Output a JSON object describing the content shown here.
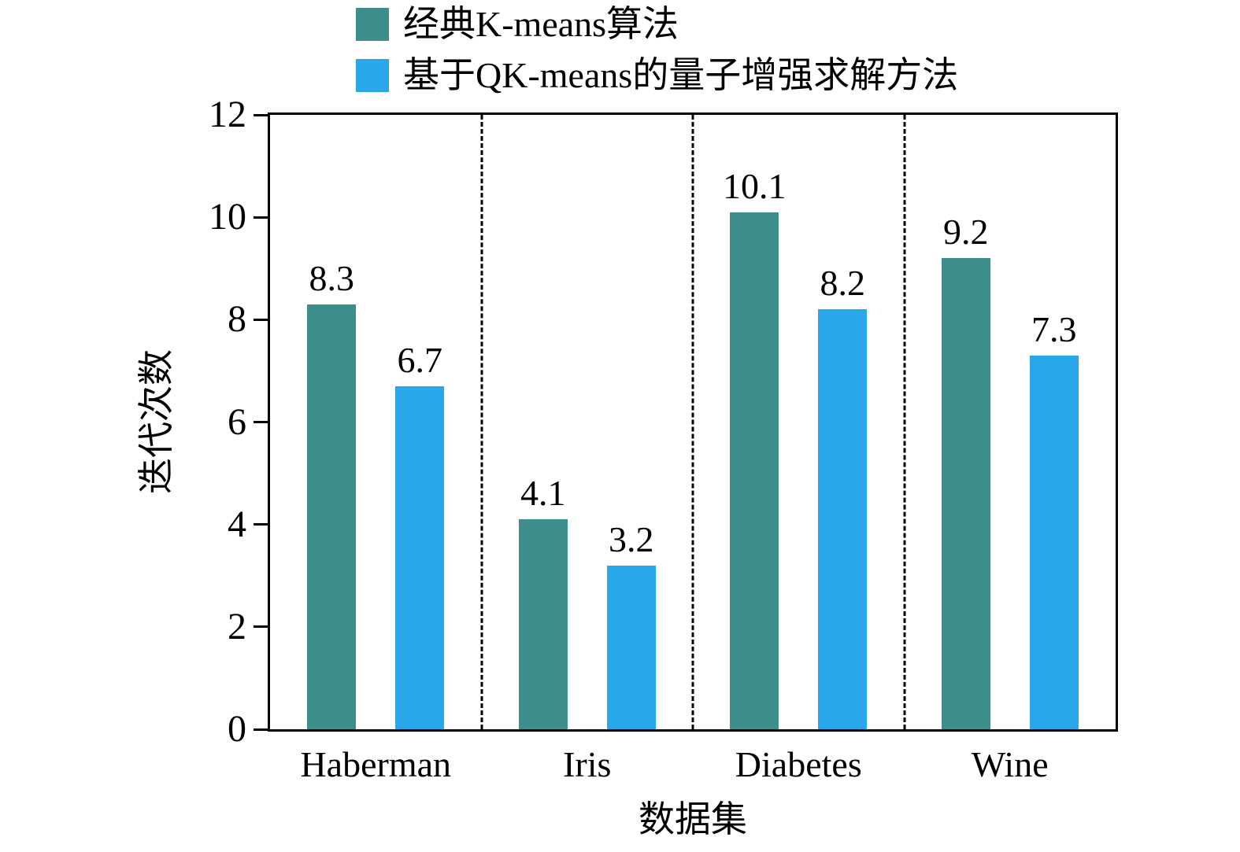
{
  "chart_data": {
    "type": "bar",
    "categories": [
      "Haberman",
      "Iris",
      "Diabetes",
      "Wine"
    ],
    "series": [
      {
        "name": "经典K-means算法",
        "color": "#3d8e8a",
        "values": [
          8.3,
          4.1,
          10.1,
          9.2
        ]
      },
      {
        "name": "基于QK-means的量子增强求解方法",
        "color": "#2aa7e8",
        "values": [
          6.7,
          3.2,
          8.2,
          7.3
        ]
      }
    ],
    "title": "",
    "xlabel": "数据集",
    "ylabel": "迭代次数",
    "ylim": [
      0,
      12
    ],
    "yticks": [
      0,
      2,
      4,
      6,
      8,
      10,
      12
    ],
    "legend_position": "top",
    "grid": false,
    "separators": "dashed vertical lines between categories"
  }
}
